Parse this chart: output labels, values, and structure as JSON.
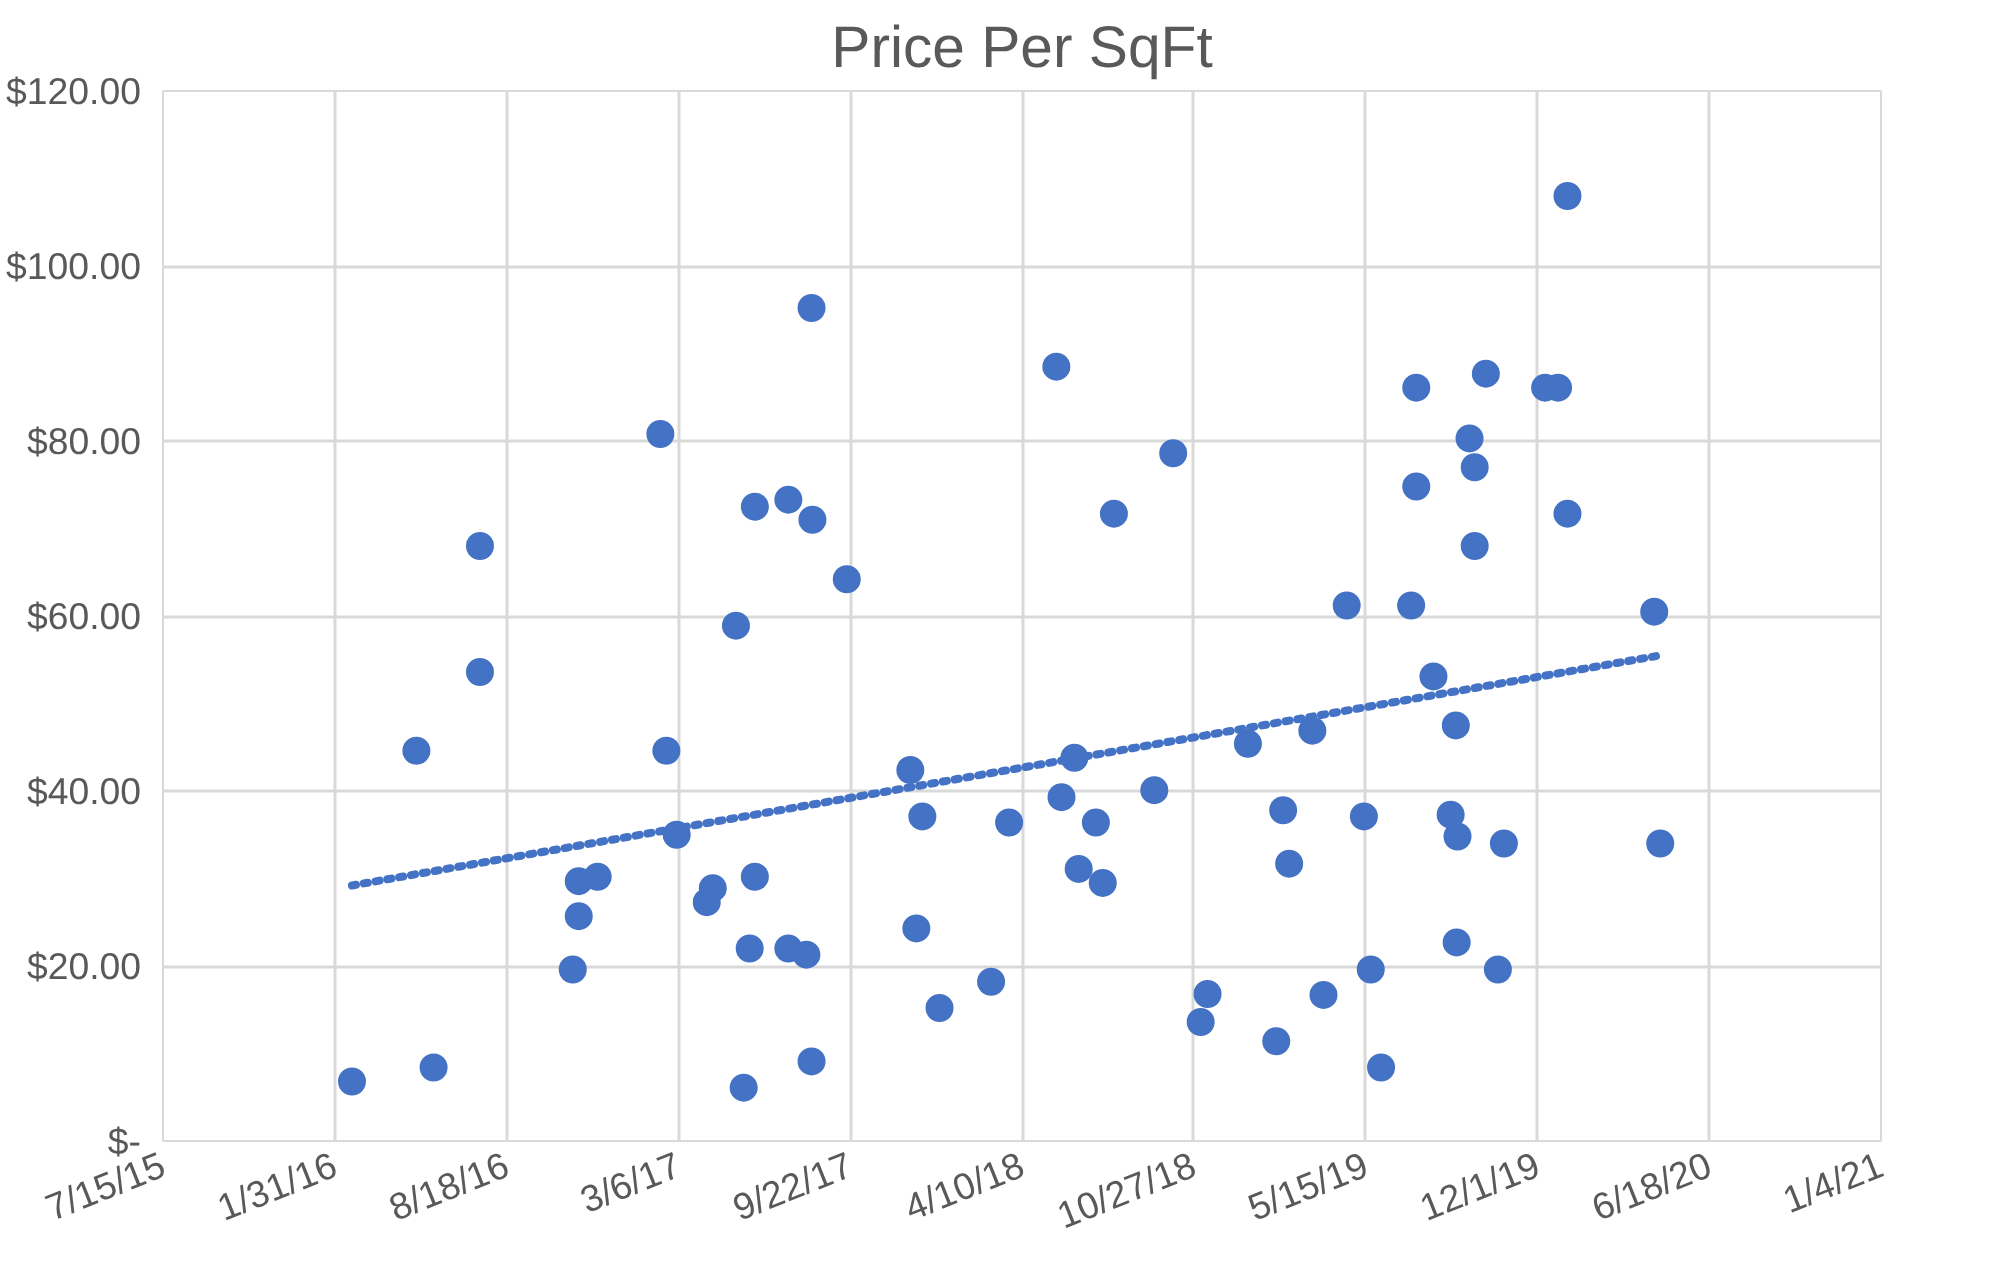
{
  "chart_data": {
    "type": "scatter",
    "title": "Price Per SqFt",
    "grid": true,
    "xlim": [
      "2015-07-15",
      "2021-01-04"
    ],
    "xticks": [
      {
        "value": "2015-07-15",
        "label": "7/15/15"
      },
      {
        "value": "2016-01-31",
        "label": "1/31/16"
      },
      {
        "value": "2016-08-18",
        "label": "8/18/16"
      },
      {
        "value": "2017-03-06",
        "label": "3/6/17"
      },
      {
        "value": "2017-09-22",
        "label": "9/22/17"
      },
      {
        "value": "2018-04-10",
        "label": "4/10/18"
      },
      {
        "value": "2018-10-27",
        "label": "10/27/18"
      },
      {
        "value": "2019-05-15",
        "label": "5/15/19"
      },
      {
        "value": "2019-12-01",
        "label": "12/1/19"
      },
      {
        "value": "2020-06-18",
        "label": "6/18/20"
      },
      {
        "value": "2021-01-04",
        "label": "1/4/21"
      }
    ],
    "ylim": [
      0,
      120
    ],
    "yticks": [
      {
        "value": 0,
        "label": "$-"
      },
      {
        "value": 20,
        "label": "$20.00"
      },
      {
        "value": 40,
        "label": "$40.00"
      },
      {
        "value": 60,
        "label": "$60.00"
      },
      {
        "value": 80,
        "label": "$80.00"
      },
      {
        "value": 100,
        "label": "$100.00"
      },
      {
        "value": 120,
        "label": "$120.00"
      }
    ],
    "series": [
      {
        "marker": "circle",
        "color": "#4472c4",
        "x": [
          "2016-02-20",
          "2016-05-25",
          "2016-05-05",
          "2016-07-18",
          "2016-07-18",
          "2016-11-03",
          "2016-11-10",
          "2016-11-10",
          "2016-12-02",
          "2017-02-13",
          "2017-02-20",
          "2017-03-04",
          "2017-04-08",
          "2017-04-15",
          "2017-05-12",
          "2017-05-21",
          "2017-05-28",
          "2017-06-03",
          "2017-06-03",
          "2017-07-12",
          "2017-07-12",
          "2017-08-02",
          "2017-08-08",
          "2017-08-09",
          "2017-08-08",
          "2017-09-18",
          "2017-12-01",
          "2017-12-15",
          "2017-12-08",
          "2018-01-04",
          "2018-03-05",
          "2018-03-26",
          "2018-05-20",
          "2018-05-26",
          "2018-06-10",
          "2018-06-15",
          "2018-07-05",
          "2018-07-13",
          "2018-07-26",
          "2018-09-11",
          "2018-10-03",
          "2018-11-04",
          "2018-11-12",
          "2018-12-29",
          "2019-01-31",
          "2019-02-08",
          "2019-02-15",
          "2019-03-14",
          "2019-03-27",
          "2019-04-23",
          "2019-05-13",
          "2019-05-21",
          "2019-06-02",
          "2019-07-07",
          "2019-07-13",
          "2019-07-13",
          "2019-08-02",
          "2019-08-22",
          "2019-08-28",
          "2019-08-30",
          "2019-08-29",
          "2019-09-13",
          "2019-09-19",
          "2019-09-19",
          "2019-10-02",
          "2019-10-23",
          "2019-10-16",
          "2019-12-10",
          "2019-12-25",
          "2020-01-05",
          "2020-01-05",
          "2020-04-15",
          "2020-04-22"
        ],
        "values": [
          6.8,
          8.4,
          44.6,
          68.0,
          53.6,
          19.6,
          25.7,
          29.7,
          30.2,
          80.8,
          44.6,
          35.0,
          27.3,
          28.9,
          58.9,
          6.1,
          22.0,
          30.2,
          72.5,
          73.3,
          22.0,
          21.3,
          95.2,
          71.0,
          9.1,
          64.2,
          42.4,
          37.1,
          24.3,
          15.2,
          18.2,
          36.4,
          88.5,
          39.3,
          43.8,
          31.1,
          36.4,
          29.5,
          71.7,
          40.1,
          78.6,
          13.6,
          16.8,
          45.4,
          11.4,
          37.8,
          31.7,
          46.9,
          16.7,
          61.2,
          37.1,
          19.6,
          8.4,
          61.2,
          86.1,
          74.8,
          53.1,
          37.3,
          47.5,
          34.8,
          22.7,
          80.3,
          77.0,
          68.0,
          87.7,
          34.0,
          19.6,
          86.1,
          86.1,
          108.0,
          71.7,
          60.5,
          34.0
        ]
      },
      {
        "type": "line",
        "line_style": "dotted",
        "color": "#4472c4",
        "x": [
          "2016-02-20",
          "2020-04-22"
        ],
        "values": [
          29.2,
          55.5
        ]
      }
    ]
  }
}
